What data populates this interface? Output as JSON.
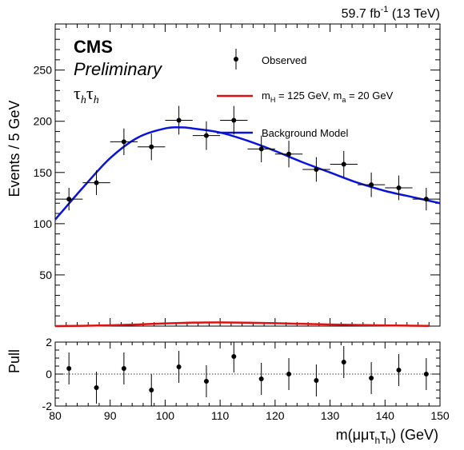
{
  "header": {
    "lumi": "59.7 fb",
    "lumi_sup": "-1",
    "energy": " (13 TeV)"
  },
  "badge": {
    "experiment": "CMS",
    "status": "Preliminary",
    "channel_main": "τ",
    "channel_sub": "h"
  },
  "legend": {
    "observed": "Observed",
    "signal_m": "m",
    "signal_sub1": "H",
    "signal_mid": " = 125 GeV, m",
    "signal_sub2": "a",
    "signal_end": " = 20 GeV",
    "background": "Background Model"
  },
  "axes": {
    "ylabel_top": "Events / 5 GeV",
    "ylabel_bottom": "Pull",
    "xlabel_pre": "m(μμτ",
    "xlabel_sub1": "h",
    "xlabel_mid": "τ",
    "xlabel_sub2": "h",
    "xlabel_post": ") (GeV)"
  },
  "colors": {
    "background_model": "#0a14d8",
    "signal": "#e01010",
    "observed": "#000000"
  },
  "chart_data": [
    {
      "type": "scatter",
      "panel": "main",
      "xlim": [
        80,
        150
      ],
      "ylim": [
        0,
        295
      ],
      "x_ticks": [
        80,
        90,
        100,
        110,
        120,
        130,
        140,
        150
      ],
      "y_ticks": [
        50,
        100,
        150,
        200,
        250
      ],
      "observed": {
        "name": "Observed",
        "x": [
          82.5,
          87.5,
          92.5,
          97.5,
          102.5,
          107.5,
          112.5,
          117.5,
          122.5,
          127.5,
          132.5,
          137.5,
          142.5,
          147.5
        ],
        "y": [
          124,
          140,
          180,
          175,
          201,
          186,
          201,
          173,
          168,
          153,
          158,
          138,
          135,
          124
        ],
        "yerr": [
          11,
          12,
          13,
          13,
          14,
          14,
          14,
          13,
          13,
          12,
          13,
          12,
          12,
          11
        ],
        "xerr": 2.5
      },
      "background_model": {
        "name": "Background Model",
        "x": [
          80,
          85,
          90,
          95,
          100,
          103,
          105,
          110,
          115,
          120,
          125,
          130,
          135,
          140,
          145,
          150
        ],
        "y": [
          104,
          135,
          164,
          184,
          193,
          194,
          193,
          189,
          181,
          171,
          160,
          150,
          140,
          132,
          126,
          120
        ]
      },
      "signal": {
        "name": "mH = 125 GeV, ma = 20 GeV",
        "x": [
          80,
          85,
          90,
          95,
          100,
          105,
          110,
          115,
          120,
          125,
          130,
          135,
          140,
          145,
          148
        ],
        "y": [
          0,
          0.3,
          0.8,
          1.6,
          2.6,
          3.4,
          3.6,
          3.3,
          2.8,
          2.2,
          1.6,
          1.1,
          0.7,
          0.4,
          0.2
        ]
      }
    },
    {
      "type": "scatter",
      "panel": "pull",
      "xlim": [
        80,
        150
      ],
      "ylim": [
        -2,
        2
      ],
      "y_ticks": [
        -2,
        0,
        2
      ],
      "x": [
        82.5,
        87.5,
        92.5,
        97.5,
        102.5,
        107.5,
        112.5,
        117.5,
        122.5,
        127.5,
        132.5,
        137.5,
        142.5,
        147.5
      ],
      "y": [
        0.35,
        -0.85,
        0.35,
        -1.0,
        0.45,
        -0.45,
        1.1,
        -0.3,
        0.0,
        -0.4,
        0.75,
        -0.25,
        0.25,
        0.0
      ],
      "yerr": 1.0,
      "xerr": 2.5
    }
  ]
}
